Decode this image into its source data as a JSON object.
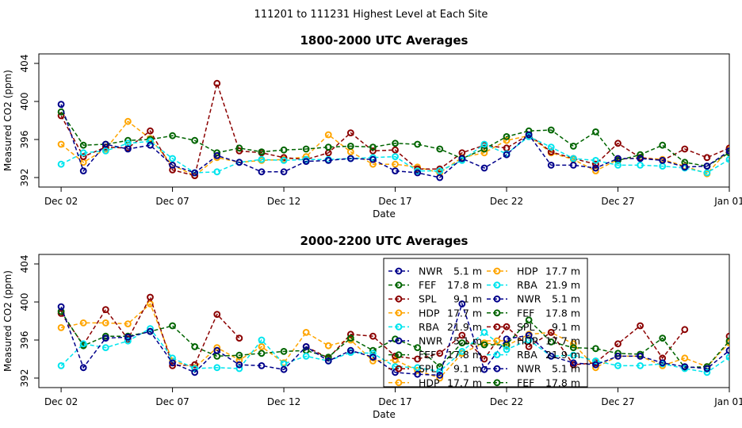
{
  "suptitle": "111201  to  111231 Highest Level at Each Site",
  "colors": {
    "NWR": "#00008B",
    "FEF": "#006400",
    "SPL": "#8B0000",
    "HDP": "#FFA500",
    "RBA": "#00E5EE"
  },
  "chart_data": [
    {
      "type": "line",
      "title": "1800-2000 UTC Averages",
      "xlabel": "Date",
      "ylabel": "Measured CO2 (ppm)",
      "xlim": [
        1,
        32
      ],
      "ylim": [
        391,
        405
      ],
      "x_ticks": [
        2,
        7,
        12,
        17,
        22,
        27,
        32
      ],
      "x_tick_labels": [
        "Dec 02",
        "Dec 07",
        "Dec 12",
        "Dec 17",
        "Dec 22",
        "Dec 27",
        "Jan 01"
      ],
      "y_ticks": [
        392,
        396,
        400,
        404
      ],
      "series": [
        {
          "name": "HDP",
          "color_key": "HDP",
          "x": [
            2,
            3,
            4,
            5,
            6,
            7,
            8,
            9,
            10,
            11,
            12,
            13,
            14,
            15,
            16,
            17,
            18,
            19,
            20,
            21,
            22,
            23,
            24,
            25,
            26,
            27,
            28,
            29,
            30,
            31,
            32
          ],
          "y": [
            395.5,
            393.6,
            395.0,
            397.9,
            396.1,
            393.3,
            392.2,
            394.1,
            393.6,
            393.8,
            393.9,
            394.2,
            396.5,
            394.7,
            393.4,
            393.4,
            393.1,
            392.5,
            394.1,
            394.6,
            395.9,
            396.4,
            394.6,
            393.9,
            392.7,
            393.9,
            394.1,
            393.9,
            393.2,
            392.4,
            395.0
          ]
        },
        {
          "name": "SPL",
          "color_key": "SPL",
          "x": [
            2,
            3,
            4,
            5,
            6,
            7,
            8,
            9,
            10,
            11,
            12,
            13,
            14,
            15,
            16,
            17,
            18,
            19,
            20,
            21,
            22,
            23,
            24,
            25,
            26,
            27,
            28,
            29,
            30,
            31,
            32
          ],
          "y": [
            398.5,
            394.2,
            395.2,
            395.1,
            396.9,
            392.8,
            392.2,
            401.9,
            394.8,
            394.6,
            394.1,
            393.9,
            394.6,
            396.7,
            394.8,
            394.9,
            392.9,
            392.9,
            394.6,
            395.4,
            395.1,
            396.5,
            394.7,
            394.0,
            393.4,
            395.6,
            394.1,
            393.8,
            395.0,
            394.1,
            395.1
          ]
        },
        {
          "name": "FEF",
          "color_key": "FEF",
          "x": [
            2,
            3,
            4,
            5,
            6,
            7,
            8,
            9,
            10,
            11,
            12,
            13,
            14,
            15,
            16,
            17,
            18,
            19,
            20,
            21,
            22,
            23,
            24,
            25,
            26,
            27,
            28,
            29,
            30,
            31,
            32
          ],
          "y": [
            398.9,
            395.4,
            395.5,
            395.9,
            396.0,
            396.4,
            395.9,
            394.6,
            395.1,
            394.7,
            394.9,
            395.0,
            395.2,
            395.3,
            395.2,
            395.6,
            395.5,
            395.0,
            394.0,
            395.0,
            396.3,
            396.9,
            397.0,
            395.3,
            396.8,
            393.8,
            394.4,
            395.4,
            393.6,
            393.2,
            394.6
          ]
        },
        {
          "name": "RBA",
          "color_key": "RBA",
          "x": [
            2,
            3,
            4,
            5,
            6,
            7,
            8,
            9,
            10,
            11,
            12,
            13,
            14,
            15,
            16,
            17,
            18,
            19,
            20,
            21,
            22,
            23,
            24,
            25,
            26,
            27,
            28,
            29,
            30,
            31,
            32
          ],
          "y": [
            393.4,
            394.6,
            394.8,
            395.6,
            395.8,
            394.0,
            392.5,
            392.6,
            393.6,
            393.9,
            393.8,
            393.9,
            393.9,
            394.0,
            394.1,
            394.2,
            392.7,
            392.7,
            393.8,
            395.5,
            394.5,
            396.3,
            395.2,
            394.0,
            393.8,
            393.3,
            393.3,
            393.2,
            393.0,
            392.5,
            393.9
          ]
        },
        {
          "name": "NWR",
          "color_key": "NWR",
          "x": [
            2,
            3,
            4,
            5,
            6,
            7,
            8,
            9,
            10,
            11,
            12,
            13,
            14,
            15,
            16,
            17,
            18,
            19,
            20,
            21,
            22,
            23,
            24,
            25,
            26,
            27,
            28,
            29,
            30,
            31,
            32
          ],
          "y": [
            399.7,
            392.7,
            395.5,
            395.0,
            395.4,
            393.3,
            392.5,
            394.3,
            393.6,
            392.6,
            392.6,
            393.7,
            393.8,
            394.0,
            393.9,
            392.7,
            392.5,
            392.0,
            394.0,
            393.0,
            394.4,
            396.5,
            393.3,
            393.3,
            393.0,
            394.0,
            394.0,
            393.8,
            393.1,
            393.2,
            394.8
          ]
        }
      ]
    },
    {
      "type": "line",
      "title": "2000-2200 UTC Averages",
      "xlabel": "Date",
      "ylabel": "Measured CO2 (ppm)",
      "xlim": [
        1,
        32
      ],
      "ylim": [
        391,
        405
      ],
      "x_ticks": [
        2,
        7,
        12,
        17,
        22,
        27,
        32
      ],
      "x_tick_labels": [
        "Dec 02",
        "Dec 07",
        "Dec 12",
        "Dec 17",
        "Dec 22",
        "Dec 27",
        "Jan 01"
      ],
      "y_ticks": [
        392,
        396,
        400,
        404
      ],
      "series": [
        {
          "name": "HDP",
          "color_key": "HDP",
          "x": [
            2,
            3,
            4,
            5,
            6,
            7,
            8,
            9,
            10,
            11,
            12,
            13,
            14,
            15,
            16,
            17,
            18,
            19,
            20,
            21,
            22,
            23,
            24,
            25,
            26,
            27,
            28,
            29,
            30,
            31,
            32
          ],
          "y": [
            397.3,
            397.8,
            397.8,
            397.7,
            399.8,
            393.8,
            393.1,
            395.2,
            393.9,
            395.3,
            393.6,
            396.8,
            395.4,
            396.0,
            393.8,
            393.9,
            392.8,
            392.0,
            394.6,
            395.7,
            395.4,
            396.6,
            396.8,
            395.6,
            393.1,
            394.3,
            394.3,
            393.3,
            394.1,
            393.2,
            395.7
          ]
        },
        {
          "name": "SPL",
          "color_key": "SPL",
          "x": [
            2,
            3,
            4,
            5,
            6,
            7,
            8,
            9,
            10,
            11,
            12,
            13,
            14,
            15,
            16,
            17,
            18,
            19,
            20,
            21,
            22,
            23,
            24,
            25,
            26,
            27,
            28,
            29,
            30,
            31,
            32
          ],
          "y": [
            398.8,
            395.5,
            399.2,
            396.1,
            400.5,
            393.3,
            393.4,
            398.7,
            396.2,
            null,
            null,
            395.3,
            394.1,
            396.6,
            396.4,
            394.3,
            394.0,
            394.6,
            396.5,
            394.0,
            397.4,
            395.3,
            396.8,
            393.4,
            393.6,
            395.6,
            397.5,
            394.1,
            397.1,
            null,
            396.4
          ]
        },
        {
          "name": "FEF",
          "color_key": "FEF",
          "x": [
            2,
            3,
            4,
            5,
            6,
            7,
            8,
            9,
            10,
            11,
            12,
            13,
            14,
            15,
            16,
            17,
            18,
            19,
            20,
            21,
            22,
            23,
            24,
            25,
            26,
            27,
            28,
            29,
            30,
            31,
            32
          ],
          "y": [
            399.0,
            395.4,
            396.4,
            396.4,
            396.9,
            397.5,
            395.3,
            394.3,
            394.4,
            394.6,
            394.8,
            394.9,
            394.2,
            396.2,
            394.9,
            396.1,
            395.2,
            393.2,
            395.7,
            395.5,
            395.5,
            398.1,
            395.8,
            395.2,
            395.1,
            394.6,
            394.5,
            396.2,
            393.1,
            393.2,
            395.9
          ]
        },
        {
          "name": "RBA",
          "color_key": "RBA",
          "x": [
            2,
            3,
            4,
            5,
            6,
            7,
            8,
            9,
            10,
            11,
            12,
            13,
            14,
            15,
            16,
            17,
            18,
            19,
            20,
            21,
            22,
            23,
            24,
            25,
            26,
            27,
            28,
            29,
            30,
            31,
            32
          ],
          "y": [
            393.3,
            395.6,
            395.2,
            395.9,
            397.2,
            394.1,
            393.0,
            393.1,
            393.0,
            396.0,
            393.5,
            394.3,
            393.8,
            394.7,
            394.6,
            393.2,
            393.1,
            392.7,
            394.8,
            396.8,
            395.0,
            396.0,
            394.3,
            394.4,
            393.8,
            393.3,
            393.3,
            393.5,
            393.0,
            392.6,
            394.2
          ]
        },
        {
          "name": "NWR",
          "color_key": "NWR",
          "x": [
            2,
            3,
            4,
            5,
            6,
            7,
            8,
            9,
            10,
            11,
            12,
            13,
            14,
            15,
            16,
            17,
            18,
            19,
            20,
            21,
            22,
            23,
            24,
            25,
            26,
            27,
            28,
            29,
            30,
            31,
            32
          ],
          "y": [
            399.5,
            393.1,
            396.2,
            396.3,
            396.9,
            393.6,
            392.6,
            394.9,
            393.4,
            393.3,
            392.9,
            395.3,
            393.8,
            394.9,
            394.2,
            392.6,
            392.4,
            392.3,
            399.8,
            392.9,
            396.1,
            396.5,
            394.3,
            393.6,
            393.4,
            394.3,
            394.3,
            393.6,
            393.2,
            393.0,
            394.9
          ]
        }
      ]
    }
  ],
  "legend": {
    "col1": [
      {
        "site": "NWR",
        "height": "5.1 m",
        "color_key": "NWR"
      },
      {
        "site": "FEF",
        "height": "17.8 m",
        "color_key": "FEF"
      },
      {
        "site": "SPL",
        "height": "9.1 m",
        "color_key": "SPL"
      },
      {
        "site": "HDP",
        "height": "17.7 m",
        "color_key": "HDP"
      },
      {
        "site": "RBA",
        "height": "21.9 m",
        "color_key": "RBA"
      },
      {
        "site": "NWR",
        "height": "5.1 m",
        "color_key": "NWR"
      },
      {
        "site": "FEF",
        "height": "17.8 m",
        "color_key": "FEF"
      },
      {
        "site": "SPL",
        "height": "9.1 m",
        "color_key": "SPL"
      },
      {
        "site": "HDP",
        "height": "17.7 m",
        "color_key": "HDP"
      }
    ],
    "col2": [
      {
        "site": "HDP",
        "height": "17.7 m",
        "color_key": "HDP"
      },
      {
        "site": "RBA",
        "height": "21.9 m",
        "color_key": "RBA"
      },
      {
        "site": "NWR",
        "height": "5.1 m",
        "color_key": "NWR"
      },
      {
        "site": "FEF",
        "height": "17.8 m",
        "color_key": "FEF"
      },
      {
        "site": "SPL",
        "height": "9.1 m",
        "color_key": "SPL"
      },
      {
        "site": "HDP",
        "height": "17.7 m",
        "color_key": "HDP"
      },
      {
        "site": "RBA",
        "height": "21.9 m",
        "color_key": "RBA"
      },
      {
        "site": "NWR",
        "height": "5.1 m",
        "color_key": "NWR"
      },
      {
        "site": "FEF",
        "height": "17.8 m",
        "color_key": "FEF"
      }
    ]
  }
}
